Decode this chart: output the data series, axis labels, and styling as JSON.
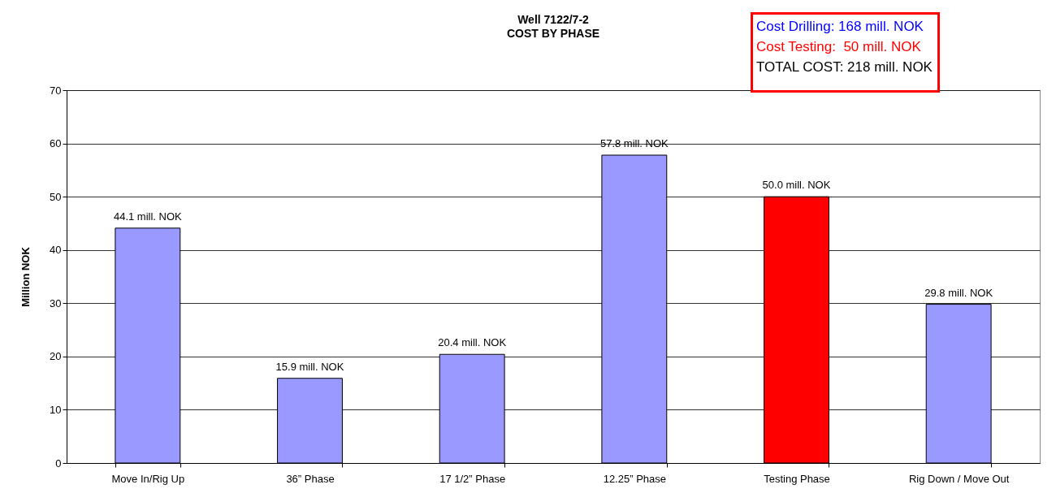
{
  "chart_data": {
    "type": "bar",
    "title": "Well 7122/7-2",
    "subtitle": "COST BY PHASE",
    "ylabel": "Million NOK",
    "categories": [
      "Move In/Rig Up",
      "36” Phase",
      "17 1/2” Phase",
      "12.25” Phase",
      "Testing Phase",
      "Rig Down / Move Out"
    ],
    "values": [
      44.1,
      15.9,
      20.4,
      57.8,
      50.0,
      29.8
    ],
    "colors": [
      "#9999ff",
      "#9999ff",
      "#9999ff",
      "#9999ff",
      "#ff0000",
      "#9999ff"
    ],
    "value_labels": [
      "44.1 mill. NOK",
      "15.9 mill. NOK",
      "20.4 mill. NOK",
      "57.8 mill. NOK",
      "50.0 mill. NOK",
      "29.8 mill. NOK"
    ],
    "ylim": [
      0,
      70
    ],
    "yticks": [
      0,
      10,
      20,
      30,
      40,
      50,
      60,
      70
    ],
    "grid": "y",
    "annotations": [
      "Cost Drilling: 168 mill. NOK",
      "Cost Testing:  50 mill. NOK",
      "TOTAL COST: 218 mill. NOK"
    ]
  }
}
